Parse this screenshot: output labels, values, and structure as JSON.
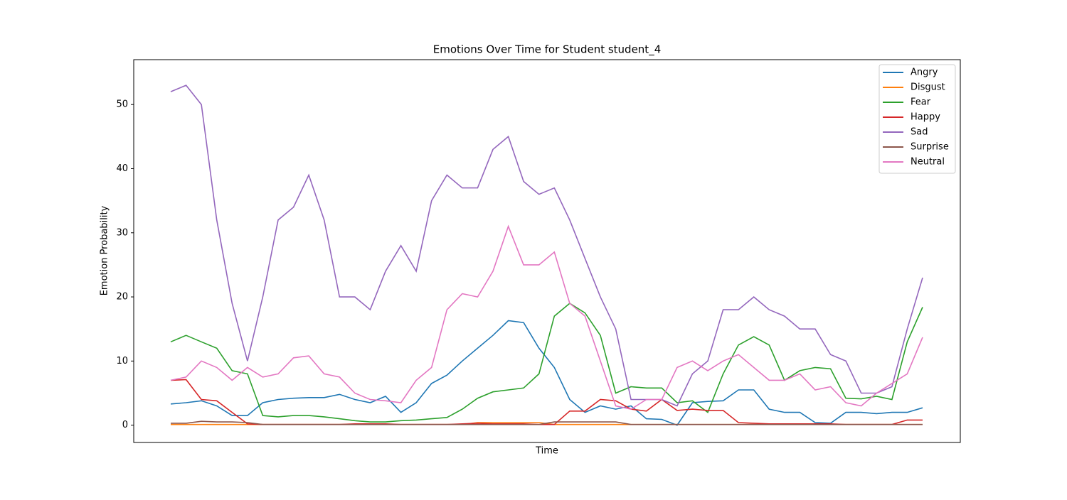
{
  "chart_data": {
    "type": "line",
    "title": "Emotions Over Time for Student student_4",
    "x_label": "Time",
    "y_label": "Emotion Probability",
    "categories": [
      null,
      null,
      null,
      null,
      null,
      null,
      null,
      null,
      null,
      null,
      null,
      null,
      null,
      null,
      null,
      null,
      null,
      null,
      null,
      null,
      null,
      null,
      null,
      null,
      null,
      null,
      null,
      null,
      null,
      null,
      null,
      null,
      null,
      null,
      null,
      null,
      null,
      null,
      null,
      null,
      null,
      null,
      null,
      null,
      null,
      null,
      null,
      null,
      null,
      null
    ],
    "ylim": [
      -2.7,
      57.0
    ],
    "yticks": [
      0,
      10,
      20,
      30,
      40,
      50
    ],
    "grid": false,
    "legend": "upper right",
    "series": [
      {
        "name": "Angry",
        "color": "#1f77b4",
        "values": [
          3.3,
          3.5,
          3.8,
          3,
          1.5,
          1.5,
          3.5,
          4,
          4.2,
          4.3,
          4.3,
          4.8,
          4,
          3.5,
          4.5,
          2,
          3.5,
          6.5,
          7.8,
          10,
          12,
          14,
          16.3,
          16,
          12,
          9,
          4,
          2,
          3,
          2.5,
          3,
          1,
          0.9,
          0,
          3.5,
          3.7,
          3.8,
          5.5,
          5.5,
          2.5,
          2,
          2,
          0.4,
          0.3,
          2,
          2,
          1.8,
          2,
          2,
          2.7
        ]
      },
      {
        "name": "Disgust",
        "color": "#ff7f0e",
        "values": [
          0.1,
          0.1,
          0.1,
          0.1,
          0.1,
          0.1,
          0.1,
          0.1,
          0.1,
          0.1,
          0.1,
          0.1,
          0.1,
          0.1,
          0.1,
          0.1,
          0.1,
          0.1,
          0.1,
          0.1,
          0.4,
          0.4,
          0.4,
          0.4,
          0.4,
          0.1,
          0.1,
          0.1,
          0.1,
          0.1,
          0.1,
          0.1,
          0.1,
          0.1,
          0.1,
          0.1,
          0.1,
          0.1,
          0.1,
          0.1,
          0.1,
          0.1,
          0.1,
          0.1,
          0.1,
          0.1,
          0.1,
          0.1,
          0.1,
          0.1
        ]
      },
      {
        "name": "Fear",
        "color": "#2ca02c",
        "values": [
          13,
          14,
          13,
          12,
          8.5,
          8,
          1.5,
          1.3,
          1.5,
          1.5,
          1.3,
          1,
          0.7,
          0.5,
          0.5,
          0.7,
          0.8,
          1,
          1.2,
          2.5,
          4.2,
          5.2,
          5.5,
          5.8,
          8,
          17,
          19,
          17.5,
          14,
          5,
          6,
          5.8,
          5.8,
          3.5,
          3.8,
          2,
          8,
          12.5,
          13.8,
          12.5,
          7,
          8.5,
          9,
          8.8,
          4.2,
          4.1,
          4.5,
          4,
          13,
          18.4
        ]
      },
      {
        "name": "Happy",
        "color": "#d62728",
        "values": [
          7,
          7.1,
          4,
          3.8,
          2,
          0.2,
          0.1,
          0.1,
          0.1,
          0.1,
          0.1,
          0.1,
          0.2,
          0.2,
          0.2,
          0.1,
          0.1,
          0.1,
          0.1,
          0.2,
          0.3,
          0.2,
          0.2,
          0.2,
          0.1,
          0.1,
          2.2,
          2.2,
          4,
          3.8,
          2.5,
          2.2,
          4,
          2.3,
          2.5,
          2.3,
          2.3,
          0.4,
          0.3,
          0.2,
          0.2,
          0.2,
          0.2,
          0.2,
          0.1,
          0.1,
          0.1,
          0.1,
          0.8,
          0.8
        ]
      },
      {
        "name": "Sad",
        "color": "#9467bd",
        "values": [
          52,
          53,
          50,
          32,
          19,
          10,
          20,
          32,
          34,
          39,
          32,
          20,
          20,
          18,
          24,
          28,
          24,
          35,
          39,
          37,
          37,
          43,
          45,
          38,
          36,
          37,
          32,
          26,
          20,
          15,
          4,
          4,
          4,
          3,
          8,
          10,
          18,
          18,
          20,
          18,
          17,
          15,
          15,
          11,
          10,
          5,
          5,
          6,
          15,
          23
        ]
      },
      {
        "name": "Surprise",
        "color": "#8c564b",
        "values": [
          0.3,
          0.3,
          0.6,
          0.5,
          0.5,
          0.4,
          0.1,
          0.1,
          0.1,
          0.1,
          0.1,
          0.1,
          0.1,
          0.1,
          0.1,
          0.1,
          0.1,
          0.1,
          0.1,
          0.1,
          0.1,
          0.1,
          0.1,
          0.1,
          0.1,
          0.5,
          0.5,
          0.5,
          0.5,
          0.5,
          0.1,
          0.1,
          0.1,
          0.1,
          0.1,
          0.1,
          0.1,
          0.1,
          0.1,
          0.1,
          0.1,
          0.1,
          0.1,
          0.1,
          0.1,
          0.1,
          0.1,
          0.1,
          0.1,
          0.1
        ]
      },
      {
        "name": "Neutral",
        "color": "#e377c2",
        "values": [
          7,
          7.5,
          10,
          9,
          7,
          9,
          7.5,
          8,
          10.5,
          10.8,
          8,
          7.5,
          5,
          4,
          3.8,
          3.5,
          7,
          9,
          18,
          20.5,
          20,
          24,
          31,
          25,
          25,
          27,
          19,
          17,
          10,
          3,
          2.5,
          4,
          4,
          9,
          10,
          8.5,
          10,
          11,
          9,
          7,
          7,
          8,
          5.5,
          6,
          3.5,
          3,
          5,
          6.5,
          8,
          13.7
        ]
      }
    ]
  }
}
